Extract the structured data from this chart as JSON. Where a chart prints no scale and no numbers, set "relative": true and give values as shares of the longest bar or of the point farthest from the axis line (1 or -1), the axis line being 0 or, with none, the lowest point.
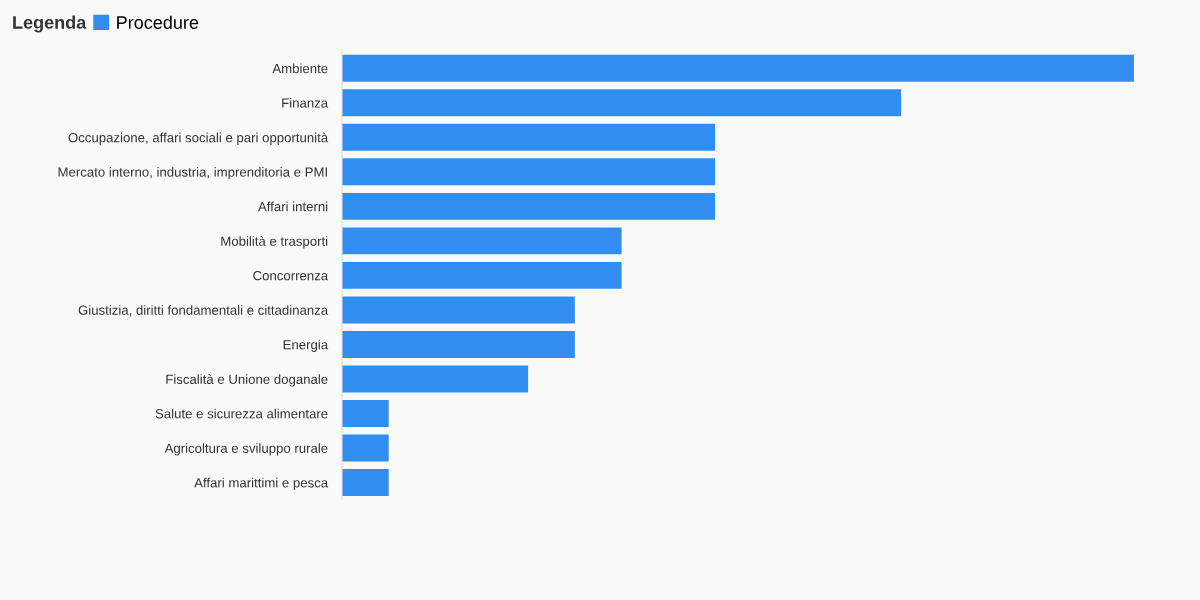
{
  "chart_data": {
    "type": "bar",
    "orientation": "horizontal",
    "relative": true,
    "legend_title": "Legenda",
    "legend": "top left",
    "grid": false,
    "categories": [
      "Ambiente",
      "Finanza",
      "Occupazione, affari sociali e pari opportunità",
      "Mercato interno, industria, imprenditoria e PMI",
      "Affari interni",
      "Mobilità e trasporti",
      "Concorrenza",
      "Giustizia, diritti fondamentali e cittadinanza",
      "Energia",
      "Fiscalità e Unione doganale",
      "Salute e sicurezza alimentare",
      "Agricoltura e sviluppo rurale",
      "Affari marittimi e pesca"
    ],
    "series": [
      {
        "name": "Procedure",
        "color": "#318ef0",
        "values": [
          1,
          0.706,
          0.471,
          0.471,
          0.471,
          0.353,
          0.353,
          0.294,
          0.294,
          0.235,
          0.059,
          0.059,
          0.059
        ]
      }
    ]
  }
}
